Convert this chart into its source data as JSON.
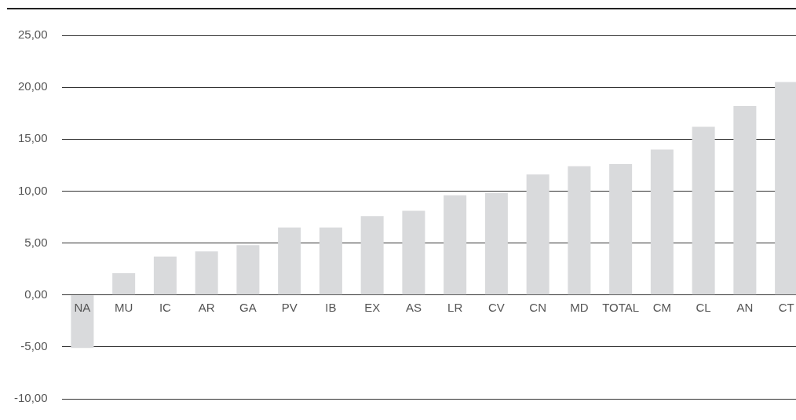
{
  "chart_data": {
    "type": "bar",
    "categories": [
      "NA",
      "MU",
      "IC",
      "AR",
      "GA",
      "PV",
      "IB",
      "EX",
      "AS",
      "LR",
      "CV",
      "CN",
      "MD",
      "TOTAL",
      "CM",
      "CL",
      "AN",
      "CT"
    ],
    "values": [
      -5.1,
      2.1,
      3.7,
      4.2,
      4.8,
      6.5,
      6.5,
      7.6,
      8.1,
      9.6,
      9.8,
      11.6,
      12.4,
      12.6,
      14.0,
      16.2,
      18.2,
      20.5
    ],
    "color": "#d9dadc",
    "ylim": [
      -10,
      25
    ],
    "yticks": [
      {
        "value": -10,
        "label": "-10,00"
      },
      {
        "value": -5,
        "label": "-5,00"
      },
      {
        "value": 0,
        "label": "0,00"
      },
      {
        "value": 5,
        "label": "5,00"
      },
      {
        "value": 10,
        "label": "10,00"
      },
      {
        "value": 15,
        "label": "15,00"
      },
      {
        "value": 20,
        "label": "20,00"
      },
      {
        "value": 25,
        "label": "25,00"
      }
    ],
    "grid": "y",
    "legend": false
  }
}
